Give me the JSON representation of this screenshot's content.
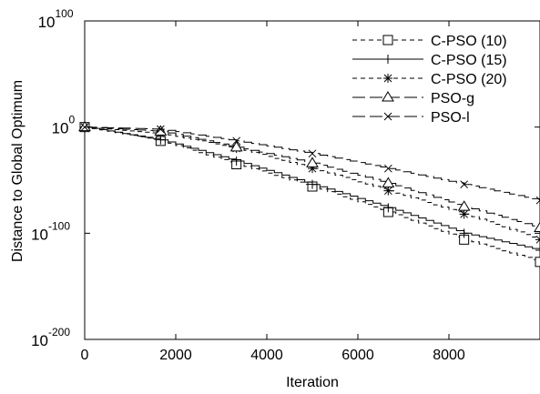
{
  "chart_data": {
    "type": "line",
    "xlabel": "Iteration",
    "ylabel": "Distance to Global Optimum",
    "y_scale": "log",
    "xlim": [
      0,
      10000
    ],
    "ylim_exponent": [
      -200,
      100
    ],
    "x_ticks": [
      0,
      2000,
      4000,
      6000,
      8000
    ],
    "y_ticks": [
      {
        "base": "10",
        "exp": "100",
        "value_exp": 100
      },
      {
        "base": "10",
        "exp": "0",
        "value_exp": 0
      },
      {
        "base": "10",
        "exp": "-100",
        "value_exp": -100
      },
      {
        "base": "10",
        "exp": "-200",
        "value_exp": -200
      }
    ],
    "legend_position": "top-right",
    "grid": false,
    "series": [
      {
        "name": "C-PSO (10)",
        "marker": "square",
        "style": "short-dash",
        "points_log10": [
          [
            0,
            0
          ],
          [
            1667,
            -13
          ],
          [
            3333,
            -35
          ],
          [
            5000,
            -56
          ],
          [
            6667,
            -80
          ],
          [
            8333,
            -106
          ],
          [
            10000,
            -127
          ]
        ]
      },
      {
        "name": "C-PSO (15)",
        "marker": "plus",
        "style": "solid",
        "points_log10": [
          [
            0,
            0
          ],
          [
            1667,
            -12
          ],
          [
            3333,
            -32
          ],
          [
            5000,
            -54
          ],
          [
            6667,
            -76
          ],
          [
            8333,
            -100
          ],
          [
            10000,
            -116
          ]
        ]
      },
      {
        "name": "C-PSO (20)",
        "marker": "star",
        "style": "short-dash",
        "points_log10": [
          [
            0,
            0
          ],
          [
            1667,
            -6
          ],
          [
            3333,
            -20
          ],
          [
            5000,
            -39
          ],
          [
            6667,
            -60
          ],
          [
            8333,
            -82
          ],
          [
            10000,
            -106
          ]
        ]
      },
      {
        "name": "PSO-g",
        "marker": "triangle",
        "style": "long-dash",
        "points_log10": [
          [
            0,
            0
          ],
          [
            1667,
            -4
          ],
          [
            3333,
            -19
          ],
          [
            5000,
            -34
          ],
          [
            6667,
            -53
          ],
          [
            8333,
            -75
          ],
          [
            10000,
            -95
          ]
        ]
      },
      {
        "name": "PSO-l",
        "marker": "x",
        "style": "long-dash",
        "points_log10": [
          [
            0,
            0
          ],
          [
            1667,
            -2
          ],
          [
            3333,
            -13
          ],
          [
            5000,
            -25
          ],
          [
            6667,
            -39
          ],
          [
            8333,
            -54
          ],
          [
            10000,
            -69
          ]
        ]
      }
    ]
  }
}
